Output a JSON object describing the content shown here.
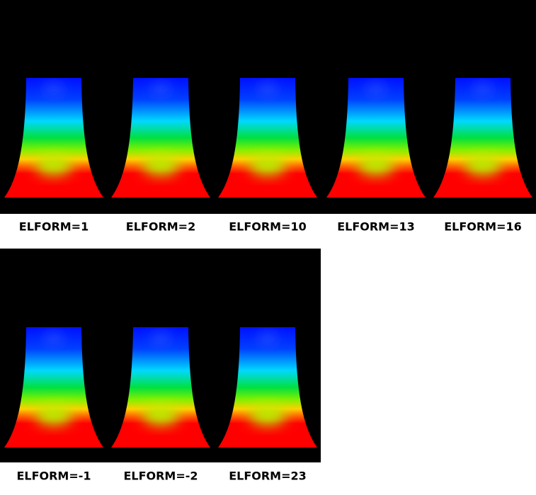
{
  "figure": {
    "rows": [
      {
        "labels": [
          "ELFORM=1",
          "ELFORM=2",
          "ELFORM=10",
          "ELFORM=13",
          "ELFORM=16"
        ]
      },
      {
        "labels": [
          "ELFORM=-1",
          "ELFORM=-2",
          "ELFORM=23"
        ]
      }
    ]
  }
}
